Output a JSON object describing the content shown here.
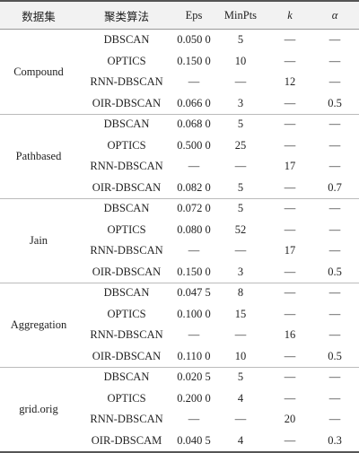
{
  "header": [
    "数据集",
    "聚类算法",
    "Eps",
    "MinPts",
    "k",
    "α"
  ],
  "groups": [
    {
      "dataset": "Compound",
      "rows": [
        [
          "DBSCAN",
          "0.050 0",
          5,
          "—",
          "—"
        ],
        [
          "OPTICS",
          "0.150 0",
          10,
          "—",
          "—"
        ],
        [
          "RNN-DBSCAN",
          "—",
          "—",
          12,
          "—"
        ],
        [
          "OIR-DBSCAN",
          "0.066 0",
          3,
          "—",
          0.5
        ]
      ]
    },
    {
      "dataset": "Pathbased",
      "rows": [
        [
          "DBSCAN",
          "0.068 0",
          5,
          "—",
          "—"
        ],
        [
          "OPTICS",
          "0.500 0",
          25,
          "—",
          "—"
        ],
        [
          "RNN-DBSCAN",
          "—",
          "—",
          17,
          "—"
        ],
        [
          "OIR-DBSCAN",
          "0.082 0",
          5,
          "—",
          0.7
        ]
      ]
    },
    {
      "dataset": "Jain",
      "rows": [
        [
          "DBSCAN",
          "0.072 0",
          5,
          "—",
          "—"
        ],
        [
          "OPTICS",
          "0.080 0",
          52,
          "—",
          "—"
        ],
        [
          "RNN-DBSCAN",
          "—",
          "—",
          17,
          "—"
        ],
        [
          "OIR-DBSCAN",
          "0.150 0",
          3,
          "—",
          0.5
        ]
      ]
    },
    {
      "dataset": "Aggregation",
      "rows": [
        [
          "DBSCAN",
          "0.047 5",
          8,
          "—",
          "—"
        ],
        [
          "OPTICS",
          "0.100 0",
          15,
          "—",
          "—"
        ],
        [
          "RNN-DBSCAN",
          "—",
          "—",
          16,
          "—"
        ],
        [
          "OIR-DBSCAN",
          "0.110 0",
          10,
          "—",
          0.5
        ]
      ]
    },
    {
      "dataset": "grid.orig",
      "rows": [
        [
          "DBSCAN",
          "0.020 5",
          5,
          "—",
          "—"
        ],
        [
          "OPTICS",
          "0.200 0",
          4,
          "—",
          "—"
        ],
        [
          "RNN-DBSCAN",
          "—",
          "—",
          20,
          "—"
        ],
        [
          "OIR-DBSCAM",
          "0.040 5",
          4,
          "—",
          0.3
        ]
      ]
    }
  ]
}
